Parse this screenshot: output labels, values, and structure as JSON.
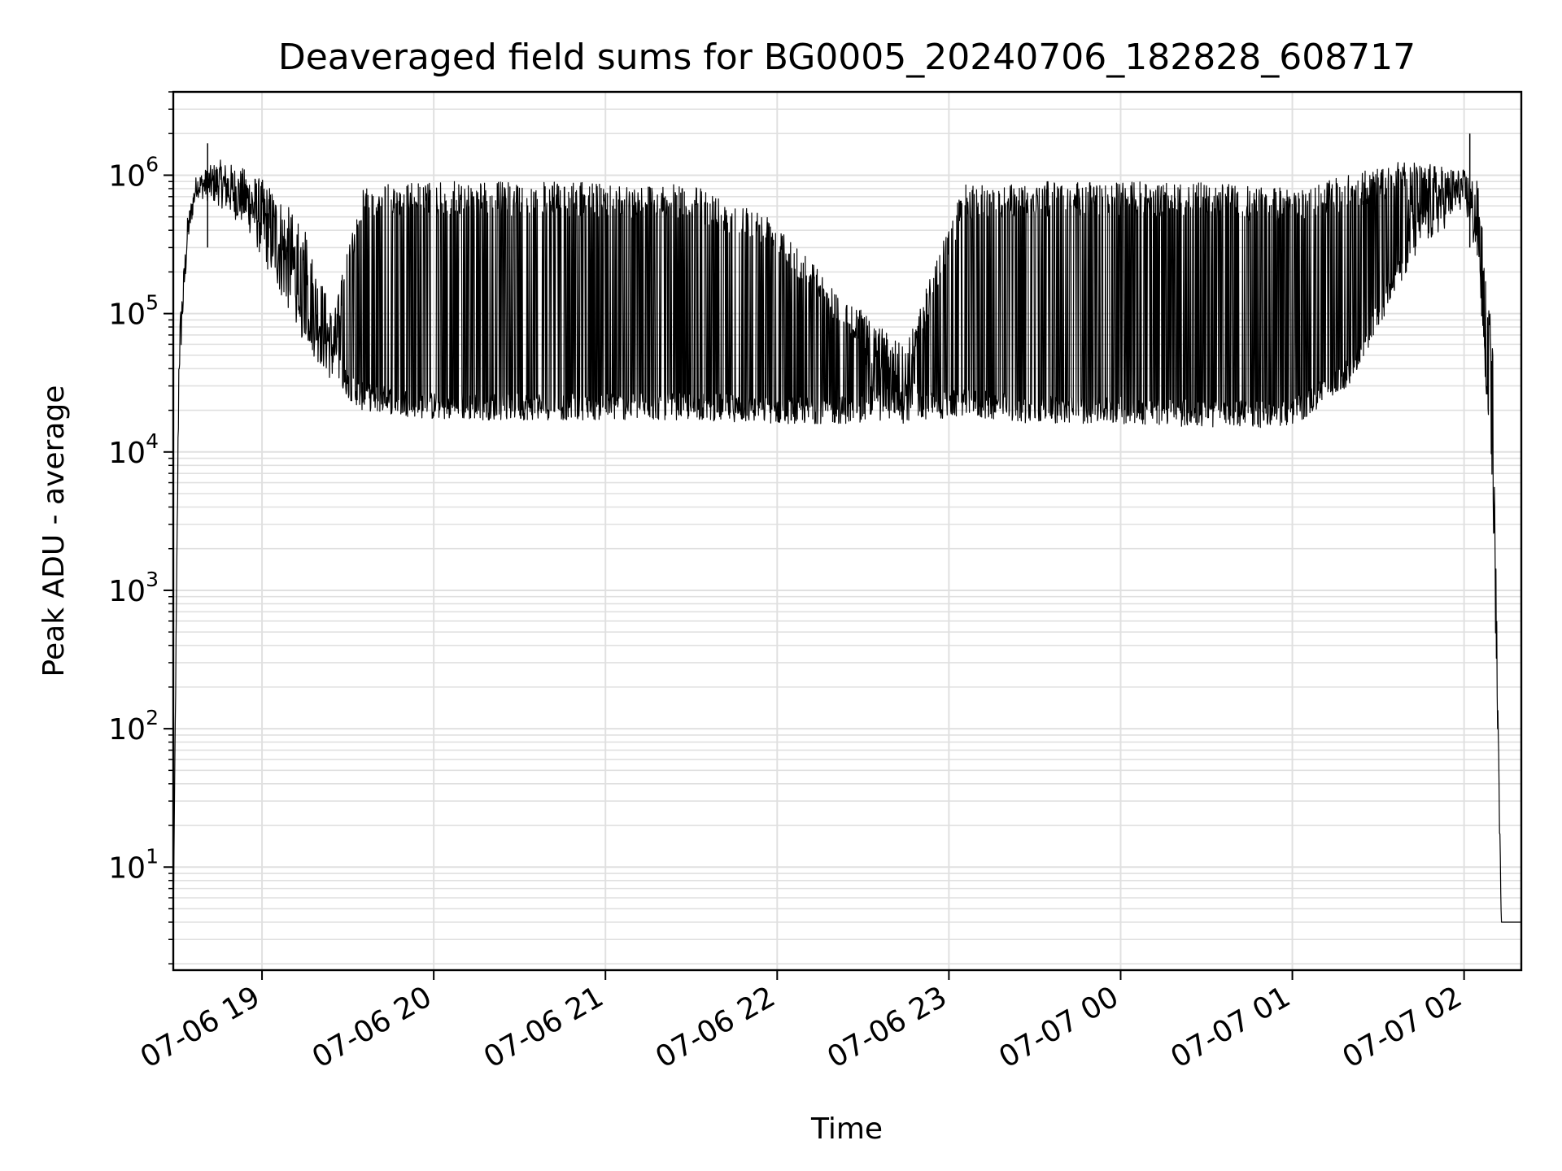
{
  "chart_data": {
    "type": "line",
    "title": "Deaveraged field sums for BG0005_20240706_182828_608717",
    "xlabel": "Time",
    "ylabel": "Peak ADU - average",
    "yscale": "log",
    "ylim": [
      1.8,
      4000000
    ],
    "xlim": [
      "07-06 18:29",
      "07-07 02:20"
    ],
    "grid": true,
    "line_color": "#000000",
    "grid_color": "#e0e0e0",
    "x_ticks": [
      "07-06 19",
      "07-06 20",
      "07-06 21",
      "07-06 22",
      "07-06 23",
      "07-07 00",
      "07-07 01",
      "07-07 02"
    ],
    "y_ticks": [
      {
        "base": "10",
        "exp": "1",
        "value": 10
      },
      {
        "base": "10",
        "exp": "2",
        "value": 100
      },
      {
        "base": "10",
        "exp": "3",
        "value": 1000
      },
      {
        "base": "10",
        "exp": "4",
        "value": 10000
      },
      {
        "base": "10",
        "exp": "5",
        "value": 100000
      },
      {
        "base": "10",
        "exp": "6",
        "value": 1000000
      }
    ],
    "envelope": [
      {
        "t": "07-06 18:29",
        "low": 4,
        "high": 4
      },
      {
        "t": "07-06 18:31",
        "low": 30000,
        "high": 80000
      },
      {
        "t": "07-06 18:34",
        "low": 300000,
        "high": 500000
      },
      {
        "t": "07-06 18:37",
        "low": 700000,
        "high": 1000000
      },
      {
        "t": "07-06 18:45",
        "low": 600000,
        "high": 1300000
      },
      {
        "t": "07-06 18:55",
        "low": 400000,
        "high": 1100000
      },
      {
        "t": "07-06 19:05",
        "low": 150000,
        "high": 800000
      },
      {
        "t": "07-06 19:15",
        "low": 60000,
        "high": 400000
      },
      {
        "t": "07-06 19:25",
        "low": 30000,
        "high": 100000
      },
      {
        "t": "07-06 19:35",
        "low": 20000,
        "high": 850000
      },
      {
        "t": "07-06 20:00",
        "low": 17000,
        "high": 900000
      },
      {
        "t": "07-06 20:30",
        "low": 17000,
        "high": 900000
      },
      {
        "t": "07-06 21:00",
        "low": 17000,
        "high": 880000
      },
      {
        "t": "07-06 21:30",
        "low": 17000,
        "high": 850000
      },
      {
        "t": "07-06 22:00",
        "low": 16000,
        "high": 500000
      },
      {
        "t": "07-06 22:20",
        "low": 16000,
        "high": 150000
      },
      {
        "t": "07-06 22:45",
        "low": 16000,
        "high": 60000
      },
      {
        "t": "07-06 23:05",
        "low": 18000,
        "high": 850000
      },
      {
        "t": "07-06 23:30",
        "low": 16000,
        "high": 900000
      },
      {
        "t": "07-07 00:00",
        "low": 16000,
        "high": 900000
      },
      {
        "t": "07-07 00:30",
        "low": 15000,
        "high": 880000
      },
      {
        "t": "07-07 01:00",
        "low": 15000,
        "high": 800000
      },
      {
        "t": "07-07 01:20",
        "low": 30000,
        "high": 1000000
      },
      {
        "t": "07-07 01:40",
        "low": 200000,
        "high": 1300000
      },
      {
        "t": "07-07 02:00",
        "low": 600000,
        "high": 1100000
      },
      {
        "t": "07-07 02:05",
        "low": 200000,
        "high": 900000
      },
      {
        "t": "07-07 02:10",
        "low": 5000,
        "high": 60000
      },
      {
        "t": "07-07 02:13",
        "low": 4,
        "high": 4
      },
      {
        "t": "07-07 02:20",
        "low": 4,
        "high": 4
      }
    ],
    "spikes": [
      {
        "t": "07-06 18:41",
        "value": 1700000
      },
      {
        "t": "07-07 02:02",
        "value": 2000000
      }
    ]
  }
}
